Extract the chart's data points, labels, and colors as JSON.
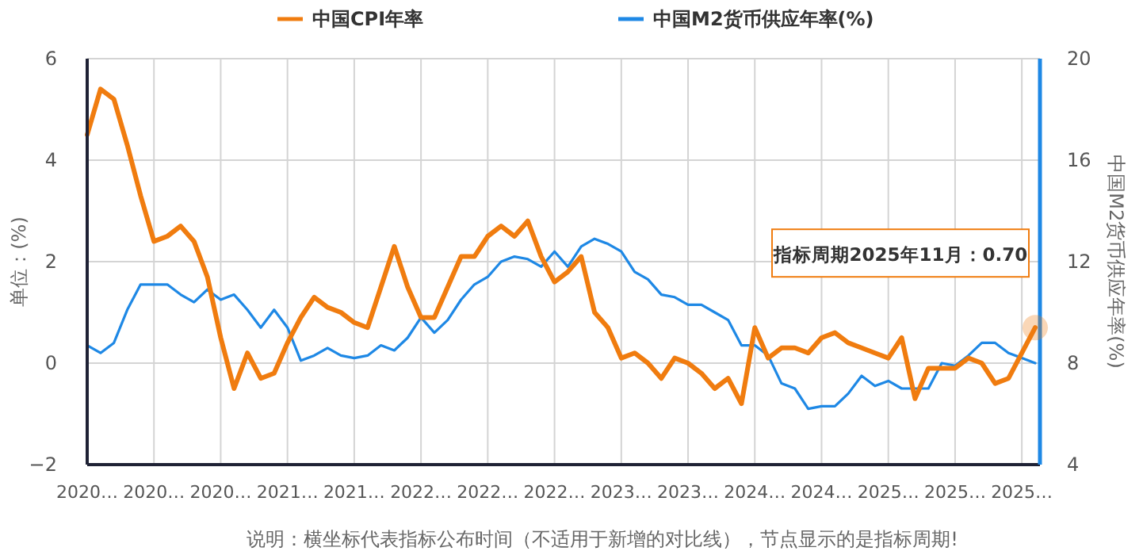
{
  "chart_data": {
    "type": "line",
    "categories": [
      "2020…",
      null,
      null,
      null,
      null,
      "2020…",
      null,
      null,
      null,
      null,
      "2020…",
      null,
      null,
      null,
      null,
      "2021…",
      null,
      null,
      null,
      null,
      "2021…",
      null,
      null,
      null,
      null,
      "2022…",
      null,
      null,
      null,
      null,
      "2022…",
      null,
      null,
      null,
      null,
      "2022…",
      null,
      null,
      null,
      null,
      "2023…",
      null,
      null,
      null,
      null,
      "2023…",
      null,
      null,
      null,
      null,
      "2024…",
      null,
      null,
      null,
      null,
      "2024…",
      null,
      null,
      null,
      null,
      "2025…",
      null,
      null,
      null,
      null,
      "2025…",
      null,
      null,
      null,
      null,
      "2025…",
      null
    ],
    "series": [
      {
        "name": "中国CPI年率",
        "color": "#f07c0f",
        "values": [
          4.5,
          5.4,
          5.2,
          4.3,
          3.3,
          2.4,
          2.5,
          2.7,
          2.4,
          1.7,
          0.5,
          -0.5,
          0.2,
          -0.3,
          -0.2,
          0.4,
          0.9,
          1.3,
          1.1,
          1.0,
          0.8,
          0.7,
          1.5,
          2.3,
          1.5,
          0.9,
          0.9,
          1.5,
          2.1,
          2.1,
          2.5,
          2.7,
          2.5,
          2.8,
          2.1,
          1.6,
          1.8,
          2.1,
          1.0,
          0.7,
          0.1,
          0.2,
          0.0,
          -0.3,
          0.1,
          0.0,
          -0.2,
          -0.5,
          -0.3,
          -0.8,
          0.7,
          0.1,
          0.3,
          0.3,
          0.2,
          0.5,
          0.6,
          0.4,
          0.3,
          0.2,
          0.1,
          0.5,
          -0.7,
          -0.1,
          -0.1,
          -0.1,
          0.1,
          0.0,
          -0.4,
          -0.3,
          0.2,
          0.7
        ]
      },
      {
        "name": "中国M2货币供应年率(%)",
        "color": "#1e88e5",
        "axis": "y2",
        "values": [
          8.7,
          8.4,
          8.8,
          10.1,
          11.1,
          11.1,
          11.1,
          10.7,
          10.4,
          10.9,
          10.5,
          10.7,
          10.1,
          9.4,
          10.1,
          9.4,
          8.1,
          8.3,
          8.6,
          8.3,
          8.2,
          8.3,
          8.7,
          8.5,
          9.0,
          9.8,
          9.2,
          9.7,
          10.5,
          11.1,
          11.4,
          12.0,
          12.2,
          12.1,
          11.8,
          12.4,
          11.8,
          12.6,
          12.9,
          12.7,
          12.4,
          11.6,
          11.3,
          10.7,
          10.6,
          10.3,
          10.3,
          10.0,
          9.7,
          8.7,
          8.7,
          8.3,
          7.2,
          7.0,
          6.2,
          6.3,
          6.3,
          6.8,
          7.5,
          7.1,
          7.3,
          7.0,
          7.0,
          7.0,
          8.0,
          7.9,
          8.3,
          8.8,
          8.8,
          8.4,
          8.2,
          8.0
        ]
      }
    ],
    "ylim": [
      -2,
      6
    ],
    "yticks": [
      -2,
      0,
      2,
      4,
      6
    ],
    "y2lim": [
      4,
      20
    ],
    "y2ticks": [
      4,
      8,
      12,
      16,
      20
    ],
    "ylabel": "单位：(%)",
    "y2label": "中国M2货币供应年率(%)",
    "legend": "top",
    "grid": true,
    "annotations": [
      "指标周期2025年11月：0.70",
      "说明：横坐标代表指标公布时间（不适用于新增的对比线），节点显示的是指标周期!"
    ]
  }
}
